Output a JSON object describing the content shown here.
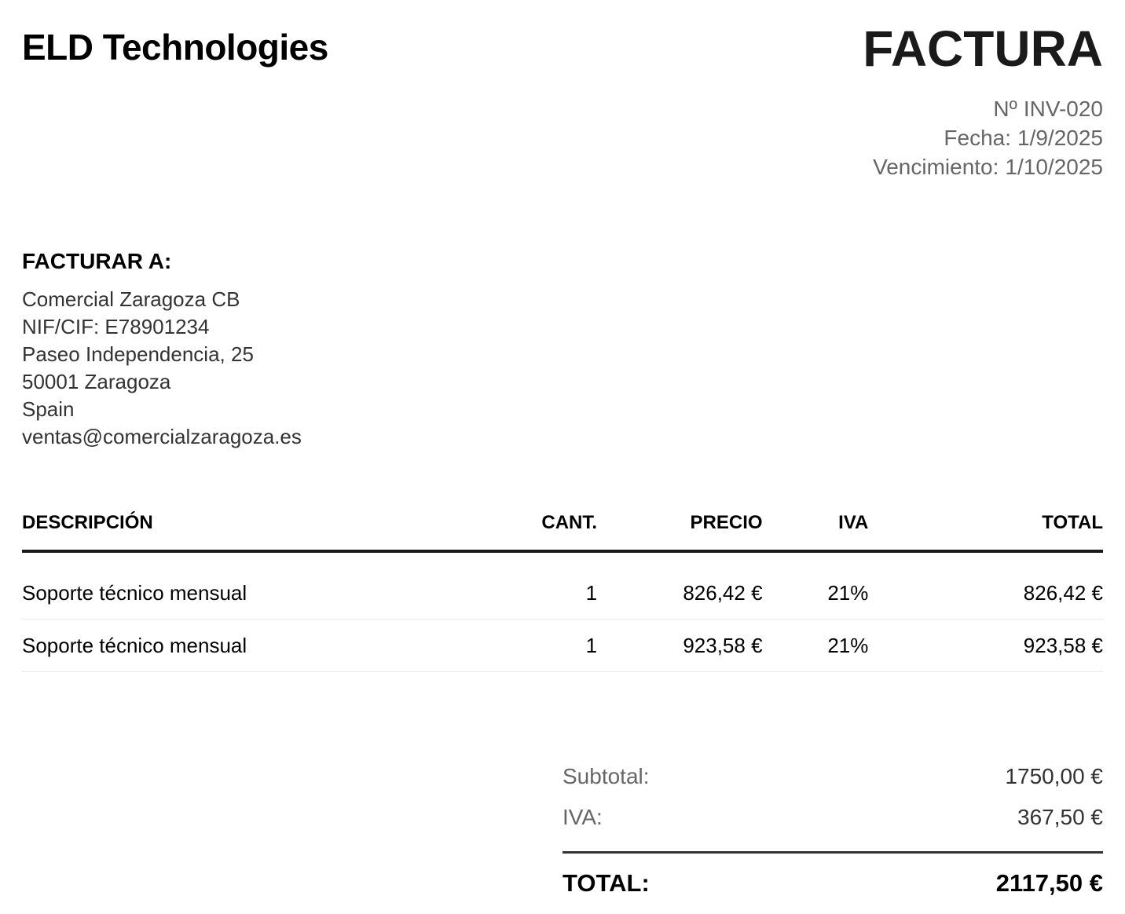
{
  "company": {
    "name": "ELD Technologies"
  },
  "invoice": {
    "title": "FACTURA",
    "meta": [
      {
        "label": "Nº",
        "value": "INV-020"
      },
      {
        "label": "Fecha:",
        "value": "1/9/2025"
      },
      {
        "label": "Vencimiento:",
        "value": "1/10/2025"
      }
    ]
  },
  "bill_to": {
    "heading": "FACTURAR A:",
    "lines": [
      "Comercial Zaragoza CB",
      "NIF/CIF: E78901234",
      "Paseo Independencia, 25",
      "50001 Zaragoza",
      "Spain",
      "ventas@comercialzaragoza.es"
    ]
  },
  "items_table": {
    "headers": {
      "description": "DESCRIPCIÓN",
      "quantity": "CANT.",
      "price": "PRECIO",
      "tax": "IVA",
      "total": "TOTAL"
    },
    "rows": [
      {
        "description": "Soporte técnico mensual",
        "quantity": "1",
        "price": "826,42 €",
        "tax": "21%",
        "total": "826,42 €"
      },
      {
        "description": "Soporte técnico mensual",
        "quantity": "1",
        "price": "923,58 €",
        "tax": "21%",
        "total": "923,58 €"
      }
    ]
  },
  "totals": {
    "subtotal_label": "Subtotal:",
    "subtotal_value": "1750,00 €",
    "tax_label": "IVA:",
    "tax_value": "367,50 €",
    "total_label": "TOTAL:",
    "total_value": "2117,50 €"
  },
  "colors": {
    "text": "#000000",
    "muted_gray": "#666666",
    "address_gray": "#333333",
    "rule_black": "#1a1a1a",
    "row_divider": "#e8e8e8",
    "background": "#ffffff"
  }
}
